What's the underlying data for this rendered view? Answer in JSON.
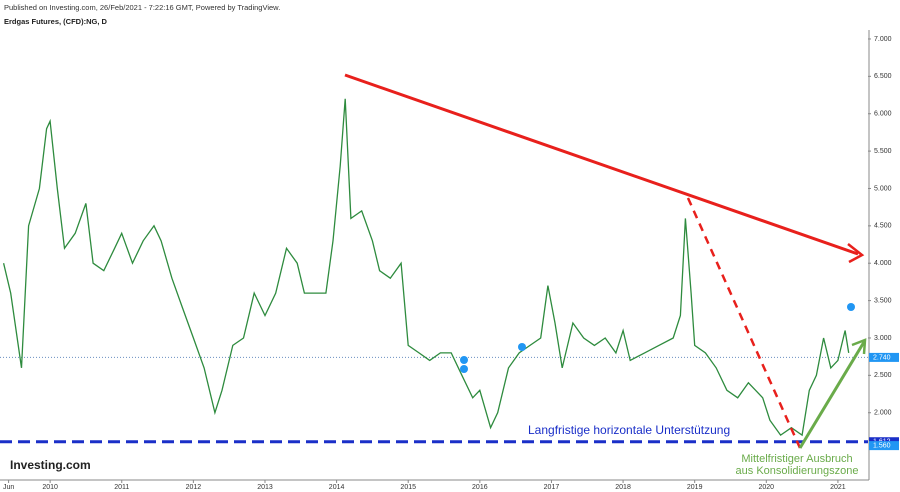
{
  "header": {
    "published": "Published on Investing.com, 26/Feb/2021 - 7:22:16 GMT, Powered by TradingView.",
    "symbol": "Erdgas Futures, (CFD):NG, D",
    "logo": "Investing.com"
  },
  "annotations": {
    "support": "Langfristige horizontale Unterstützung",
    "breakout_line1": "Mittelfristiger Ausbruch",
    "breakout_line2": "aus Konsolidierungszone"
  },
  "chart_data": {
    "type": "line",
    "color": "#2e8b3e",
    "x": [
      2009.35,
      2009.45,
      2009.6,
      2009.7,
      2009.85,
      2009.95,
      2010.0,
      2010.1,
      2010.2,
      2010.35,
      2010.5,
      2010.6,
      2010.75,
      2010.9,
      2011.0,
      2011.15,
      2011.3,
      2011.45,
      2011.55,
      2011.7,
      2011.85,
      2012.0,
      2012.15,
      2012.3,
      2012.4,
      2012.55,
      2012.7,
      2012.85,
      2013.0,
      2013.15,
      2013.3,
      2013.45,
      2013.55,
      2013.7,
      2013.85,
      2013.95,
      2014.05,
      2014.12,
      2014.2,
      2014.35,
      2014.5,
      2014.6,
      2014.75,
      2014.9,
      2015.0,
      2015.15,
      2015.3,
      2015.45,
      2015.6,
      2015.75,
      2015.9,
      2016.0,
      2016.15,
      2016.25,
      2016.4,
      2016.55,
      2016.7,
      2016.85,
      2016.95,
      2017.05,
      2017.15,
      2017.3,
      2017.45,
      2017.6,
      2017.75,
      2017.9,
      2018.0,
      2018.1,
      2018.3,
      2018.5,
      2018.7,
      2018.8,
      2018.87,
      2018.95,
      2019.0,
      2019.15,
      2019.3,
      2019.45,
      2019.6,
      2019.75,
      2019.85,
      2019.95,
      2020.05,
      2020.2,
      2020.35,
      2020.5,
      2020.6,
      2020.7,
      2020.8,
      2020.9,
      2021.0,
      2021.1,
      2021.15
    ],
    "values": [
      4.0,
      3.6,
      2.6,
      4.5,
      5.0,
      5.8,
      5.9,
      5.0,
      4.2,
      4.4,
      4.8,
      4.0,
      3.9,
      4.2,
      4.4,
      4.0,
      4.3,
      4.5,
      4.3,
      3.8,
      3.4,
      3.0,
      2.6,
      2.0,
      2.3,
      2.9,
      3.0,
      3.6,
      3.3,
      3.6,
      4.2,
      4.0,
      3.6,
      3.6,
      3.6,
      4.3,
      5.3,
      6.2,
      4.6,
      4.7,
      4.3,
      3.9,
      3.8,
      4.0,
      2.9,
      2.8,
      2.7,
      2.8,
      2.8,
      2.5,
      2.2,
      2.3,
      1.8,
      2.0,
      2.6,
      2.8,
      2.9,
      3.0,
      3.7,
      3.2,
      2.6,
      3.2,
      3.0,
      2.9,
      3.0,
      2.8,
      3.1,
      2.7,
      2.8,
      2.9,
      3.0,
      3.3,
      4.6,
      3.6,
      2.9,
      2.8,
      2.6,
      2.3,
      2.2,
      2.4,
      2.3,
      2.2,
      1.9,
      1.7,
      1.8,
      1.7,
      2.3,
      2.5,
      3.0,
      2.6,
      2.7,
      3.1,
      2.8
    ],
    "xlim": [
      2009.3,
      2021.42
    ],
    "xticks": [
      {
        "value": 2009.42,
        "label": "Jun"
      },
      2010,
      2011,
      2012,
      2013,
      2014,
      2015,
      2016,
      2017,
      2018,
      2019,
      2020,
      2021
    ],
    "ylim": [
      1.1,
      7.12
    ],
    "yticks": [
      {
        "value": 2,
        "label": "2.000"
      },
      {
        "value": 2.5,
        "label": "2.500"
      },
      {
        "value": 3,
        "label": "3.000"
      },
      {
        "value": 3.5,
        "label": "3.500"
      },
      {
        "value": 4,
        "label": "4.000"
      },
      {
        "value": 4.5,
        "label": "4.500"
      },
      {
        "value": 5,
        "label": "5.000"
      },
      {
        "value": 5.5,
        "label": "5.500"
      },
      {
        "value": 6,
        "label": "6.000"
      },
      {
        "value": 6.5,
        "label": "6.500"
      },
      {
        "value": 7,
        "label": "7.000"
      }
    ],
    "price_labels": [
      {
        "value": 2.74,
        "label": "2.740"
      },
      {
        "value": 1.612,
        "label": "1.612"
      },
      {
        "value": 1.56,
        "label": "1.560"
      }
    ]
  }
}
